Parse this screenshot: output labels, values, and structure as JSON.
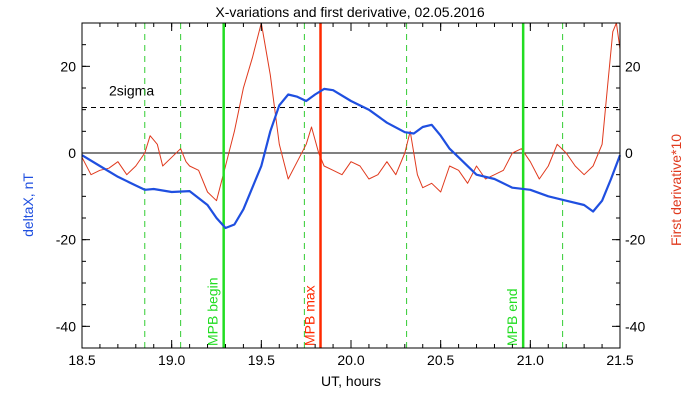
{
  "chart_data": {
    "type": "line",
    "title": "X-variations and first derivative, 02.05.2016",
    "xlabel": "UT, hours",
    "ylabel_left": "deltaX, nT",
    "ylabel_right": "First derivative*10",
    "xlim": [
      18.5,
      21.5
    ],
    "ylim": [
      -45,
      30
    ],
    "x_ticks": [
      "18.5",
      "19.0",
      "19.5",
      "20.0",
      "20.5",
      "21.0",
      "21.5"
    ],
    "y_ticks_left": [
      "-40",
      "-20",
      "0",
      "20"
    ],
    "y_ticks_right": [
      "-40",
      "-20",
      "0",
      "20"
    ],
    "colors": {
      "deltaX": "#1f4fe0",
      "derivative": "#e03a1e",
      "green": "#22dd22",
      "green_dashed": "#33cc33",
      "red": "#ff2a00"
    },
    "series": [
      {
        "name": "deltaX",
        "x": [
          18.5,
          18.6,
          18.7,
          18.8,
          18.85,
          18.9,
          19.0,
          19.1,
          19.2,
          19.25,
          19.3,
          19.35,
          19.4,
          19.5,
          19.55,
          19.6,
          19.65,
          19.7,
          19.75,
          19.8,
          19.85,
          19.9,
          20.0,
          20.1,
          20.2,
          20.3,
          20.35,
          20.4,
          20.45,
          20.5,
          20.55,
          20.6,
          20.7,
          20.8,
          20.9,
          21.0,
          21.1,
          21.2,
          21.3,
          21.35,
          21.4,
          21.45,
          21.5
        ],
        "y": [
          -0.5,
          -3,
          -5.5,
          -7.5,
          -8.5,
          -8.3,
          -9,
          -8.8,
          -12,
          -15,
          -17.3,
          -16.5,
          -13,
          -3,
          5,
          11,
          13.5,
          13,
          12,
          13.5,
          14.8,
          14.5,
          12,
          10,
          7,
          4.8,
          4.5,
          6,
          6.5,
          4,
          1,
          -1,
          -5,
          -6,
          -8,
          -8.5,
          -10,
          -11,
          -12,
          -13.5,
          -11,
          -6,
          -0.5
        ]
      },
      {
        "name": "derivative",
        "x": [
          18.5,
          18.55,
          18.6,
          18.65,
          18.7,
          18.75,
          18.8,
          18.85,
          18.88,
          18.92,
          18.95,
          19.0,
          19.05,
          19.08,
          19.1,
          19.15,
          19.2,
          19.25,
          19.3,
          19.35,
          19.4,
          19.45,
          19.5,
          19.55,
          19.6,
          19.65,
          19.7,
          19.75,
          19.78,
          19.82,
          19.85,
          19.9,
          19.95,
          20.0,
          20.05,
          20.1,
          20.15,
          20.2,
          20.25,
          20.3,
          20.33,
          20.37,
          20.4,
          20.45,
          20.5,
          20.55,
          20.6,
          20.65,
          20.7,
          20.75,
          20.8,
          20.85,
          20.9,
          20.95,
          21.0,
          21.05,
          21.1,
          21.15,
          21.2,
          21.25,
          21.3,
          21.35,
          21.4,
          21.43,
          21.46,
          21.48,
          21.5
        ],
        "y": [
          -1,
          -5,
          -4,
          -3.5,
          -2,
          -5,
          -3,
          0,
          4,
          2,
          -3,
          -1,
          1,
          -2,
          -3,
          -4,
          -9,
          -11,
          -3,
          5,
          15,
          22,
          30,
          18,
          2,
          -6,
          -2,
          2,
          6,
          0,
          -3,
          -4,
          -5,
          -2,
          -3,
          -6,
          -5,
          -2,
          -5,
          0,
          5,
          -5,
          -8,
          -7,
          -9,
          -3,
          -4,
          -7,
          -3,
          -6,
          -5,
          -4,
          0,
          1,
          -2,
          -6,
          -3,
          2,
          0,
          -3,
          -5,
          -3,
          2,
          15,
          28,
          30,
          24
        ]
      }
    ],
    "reference_line": {
      "label": "2sigma",
      "y": 10.5
    },
    "vertical_markers": [
      {
        "x": 19.29,
        "label": "MPB begin",
        "color": "green",
        "style": "solid"
      },
      {
        "x": 19.83,
        "label": "MPB max",
        "color": "red",
        "style": "solid"
      },
      {
        "x": 20.96,
        "label": "MPB end",
        "color": "green",
        "style": "solid"
      }
    ],
    "dashed_markers": [
      18.85,
      19.05,
      19.74,
      20.31,
      21.18
    ],
    "grid": false,
    "legend": "none"
  }
}
